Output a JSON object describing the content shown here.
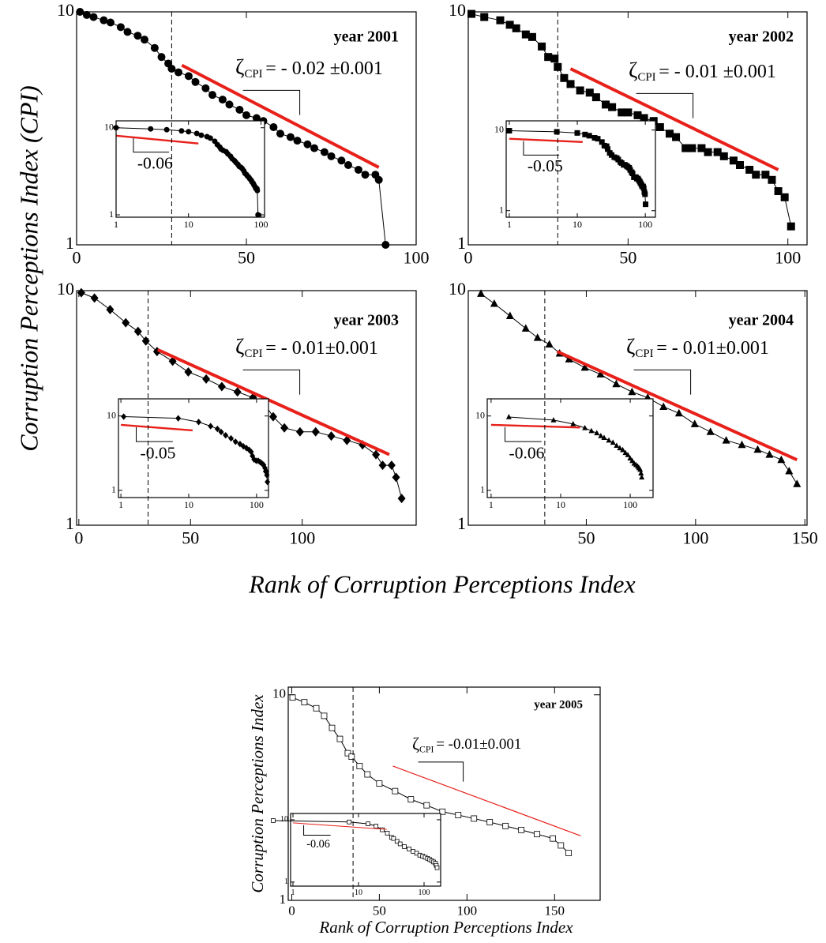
{
  "shared_ylabel": "Corruption Perceptions Index (CPI)",
  "shared_xlabel": "Rank of Corruption Perceptions Index",
  "bottom_ylabel": "Corruption Perceptions Index",
  "bottom_xlabel": "Rank of Corruption Perceptions Index",
  "chart_data": [
    {
      "type": "scatter",
      "title": "year 2001",
      "marker": "circle",
      "color": "#000000",
      "fit_color": "#e8201a",
      "log_y": true,
      "x": [
        1,
        3,
        5,
        8,
        10,
        13,
        15,
        18,
        20,
        23,
        25,
        27,
        28,
        30,
        33,
        35,
        38,
        40,
        43,
        45,
        48,
        50,
        53,
        55,
        58,
        60,
        63,
        65,
        68,
        70,
        73,
        75,
        78,
        80,
        83,
        85,
        88,
        89,
        91
      ],
      "values": [
        10,
        9.7,
        9.5,
        9.2,
        9,
        8.6,
        8.2,
        7.9,
        7.6,
        7,
        6.4,
        6,
        5.7,
        5.5,
        5.3,
        5,
        4.7,
        4.4,
        4.2,
        4,
        3.8,
        3.6,
        3.5,
        3.4,
        3.2,
        3,
        2.9,
        2.8,
        2.7,
        2.6,
        2.5,
        2.4,
        2.3,
        2.2,
        2.1,
        2,
        2,
        1.9,
        1
      ],
      "xlim": [
        0,
        100
      ],
      "xticks": [
        0,
        50,
        100
      ],
      "ylim": [
        1,
        10
      ],
      "yticks": [
        1,
        10
      ],
      "dashed_x": 28,
      "fit": {
        "x": [
          31,
          89
        ],
        "y": [
          5.9,
          2.15
        ]
      },
      "zeta_symbol": "ζ",
      "zeta_sub": "CPI",
      "zeta_text": "= - 0.02 ±0.001",
      "inset": {
        "log_x": true,
        "log_y": true,
        "xlim": [
          1,
          112
        ],
        "ylim": [
          0.94,
          12
        ],
        "xticks": [
          1,
          10,
          100
        ],
        "yticks": [
          1,
          10
        ],
        "fit": {
          "x": [
            1,
            13.7
          ],
          "y": [
            8.1,
            6.6
          ]
        },
        "fit_label": "-0.06"
      }
    },
    {
      "type": "scatter",
      "title": "year 2002",
      "marker": "square",
      "color": "#000000",
      "fit_color": "#e8201a",
      "log_y": true,
      "x": [
        1,
        5,
        10,
        13,
        15,
        18,
        20,
        23,
        25,
        27,
        28,
        30,
        32,
        35,
        38,
        40,
        43,
        45,
        48,
        50,
        53,
        55,
        58,
        60,
        63,
        65,
        68,
        70,
        73,
        75,
        78,
        80,
        83,
        85,
        88,
        90,
        93,
        95,
        97,
        99,
        101
      ],
      "values": [
        9.8,
        9.5,
        9.2,
        8.8,
        8.5,
        8,
        7.8,
        7.1,
        6.4,
        6.3,
        5.8,
        5.2,
        4.9,
        4.6,
        4.5,
        4.3,
        4,
        3.9,
        3.7,
        3.7,
        3.6,
        3.5,
        3.4,
        3.2,
        3,
        2.9,
        2.6,
        2.6,
        2.6,
        2.5,
        2.5,
        2.4,
        2.3,
        2.2,
        2.1,
        2,
        2,
        1.9,
        1.7,
        1.6,
        1.2
      ],
      "xlim": [
        0,
        106
      ],
      "xticks": [
        0,
        50,
        100
      ],
      "ylim": [
        1,
        10
      ],
      "yticks": [
        1,
        10
      ],
      "dashed_x": 28,
      "fit": {
        "x": [
          32,
          97
        ],
        "y": [
          5.7,
          2.1
        ]
      },
      "zeta_symbol": "ζ",
      "zeta_sub": "CPI",
      "zeta_text": "= - 0.01 ±0.001",
      "inset": {
        "log_x": true,
        "log_y": true,
        "xlim": [
          0.9,
          141
        ],
        "ylim": [
          0.83,
          13
        ],
        "xticks": [
          1,
          10,
          100
        ],
        "yticks": [
          1,
          10
        ],
        "fit": {
          "x": [
            1,
            12
          ],
          "y": [
            7.8,
            7.1
          ]
        },
        "fit_label": "-0.05"
      }
    },
    {
      "type": "scatter",
      "title": "year 2003",
      "marker": "diamond",
      "color": "#000000",
      "fit_color": "#e8201a",
      "log_y": true,
      "x": [
        1.1,
        7,
        14,
        21,
        26.5,
        30,
        35,
        42,
        49,
        57,
        64,
        71,
        78,
        83,
        87,
        92,
        99,
        106,
        113,
        120,
        127,
        133,
        136,
        140,
        142,
        144.5
      ],
      "values": [
        9.8,
        9.3,
        8.3,
        7.3,
        6.7,
        6.1,
        5.5,
        5,
        4.5,
        4.2,
        3.9,
        3.7,
        3.5,
        3.3,
        2.9,
        2.6,
        2.5,
        2.5,
        2.4,
        2.3,
        2.2,
        2,
        1.8,
        1.8,
        1.6,
        1.3
      ],
      "xlim": [
        -1,
        151
      ],
      "xticks": [
        0,
        50,
        100
      ],
      "ylim": [
        1,
        10
      ],
      "yticks": [
        1,
        10
      ],
      "dashed_x": 31,
      "fit": {
        "x": [
          35.3,
          139
        ],
        "y": [
          5.6,
          2
        ]
      },
      "zeta_symbol": "ζ",
      "zeta_sub": "CPI",
      "zeta_text": "= - 0.01±0.001",
      "inset": {
        "log_x": true,
        "log_y": true,
        "xlim": [
          0.92,
          150
        ],
        "ylim": [
          0.8,
          17
        ],
        "xticks": [
          1,
          10,
          100
        ],
        "yticks": [
          1,
          10
        ],
        "fit": {
          "x": [
            1,
            11.4
          ],
          "y": [
            7.6,
            6.4
          ]
        },
        "fit_label": "-0.05"
      }
    },
    {
      "type": "scatter",
      "title": "year 2004",
      "marker": "triangle",
      "color": "#000000",
      "fit_color": "#e8201a",
      "log_y": true,
      "x": [
        1.8,
        7.9,
        15.1,
        22.3,
        27.7,
        33.1,
        37.8,
        42.1,
        49.3,
        56.5,
        63.7,
        70.9,
        78.1,
        85.3,
        92.4,
        99.6,
        106.8,
        114,
        121.2,
        128.4,
        133.8,
        139.2,
        142.8,
        146.4
      ],
      "values": [
        9.7,
        8.8,
        7.8,
        6.9,
        6.3,
        5.9,
        5.4,
        5.1,
        4.7,
        4.4,
        4,
        3.7,
        3.5,
        3.2,
        3,
        2.7,
        2.5,
        2.3,
        2.2,
        2.1,
        2,
        1.9,
        1.7,
        1.5
      ],
      "xlim": [
        -4,
        151
      ],
      "xticks": [
        50,
        100,
        150
      ],
      "ylim": [
        1,
        10
      ],
      "yticks": [
        1,
        10
      ],
      "dashed_x": 31,
      "fit": {
        "x": [
          36.7,
          146.4
        ],
        "y": [
          5.5,
          1.9
        ]
      },
      "zeta_symbol": "ζ",
      "zeta_sub": "CPI",
      "zeta_text": "= - 0.01±0.001",
      "inset": {
        "log_x": true,
        "log_y": true,
        "xlim": [
          0.88,
          213
        ],
        "ylim": [
          0.8,
          17
        ],
        "xticks": [
          1,
          10,
          100
        ],
        "yticks": [
          1,
          10
        ],
        "fit": {
          "x": [
            1,
            19
          ],
          "y": [
            7.6,
            7
          ]
        },
        "fit_label": "-0.06"
      }
    },
    {
      "type": "scatter",
      "title": "year 2005",
      "marker": "open_square",
      "color": "#000000",
      "fit_color": "#e8201a",
      "log_y": true,
      "x": [
        0.5,
        7.2,
        14,
        18.5,
        23,
        27.5,
        32,
        34.2,
        38.7,
        43.2,
        50,
        59,
        68,
        77,
        86,
        95,
        104,
        113,
        122,
        131,
        140,
        149,
        153.6,
        158
      ],
      "values": [
        9.7,
        9.2,
        8.6,
        7.9,
        6.9,
        6.1,
        5.2,
        5,
        4.5,
        4.1,
        3.7,
        3.4,
        3.1,
        2.9,
        2.7,
        2.6,
        2.5,
        2.4,
        2.3,
        2.2,
        2.1,
        2,
        1.85,
        1.7
      ],
      "xlim": [
        -2,
        176
      ],
      "xticks": [
        0,
        50,
        100,
        150
      ],
      "ylim": [
        1,
        10.9
      ],
      "yticks": [
        1,
        10
      ],
      "dashed_x": 35,
      "fit": {
        "x": [
          57.7,
          164.9
        ],
        "y": [
          4.5,
          2.06
        ]
      },
      "zeta_symbol": "ζ",
      "zeta_sub": "CPI",
      "zeta_text": "= -0.01±0.001",
      "inset": {
        "log_x": true,
        "log_y": true,
        "xlim": [
          0.92,
          179
        ],
        "ylim": [
          0.86,
          12.6
        ],
        "xticks": [
          1,
          10,
          100
        ],
        "yticks": [
          1,
          10
        ],
        "fit": {
          "x": [
            1,
            27
          ],
          "y": [
            8.9,
            7
          ]
        },
        "fit_label": "-0.06"
      }
    }
  ]
}
